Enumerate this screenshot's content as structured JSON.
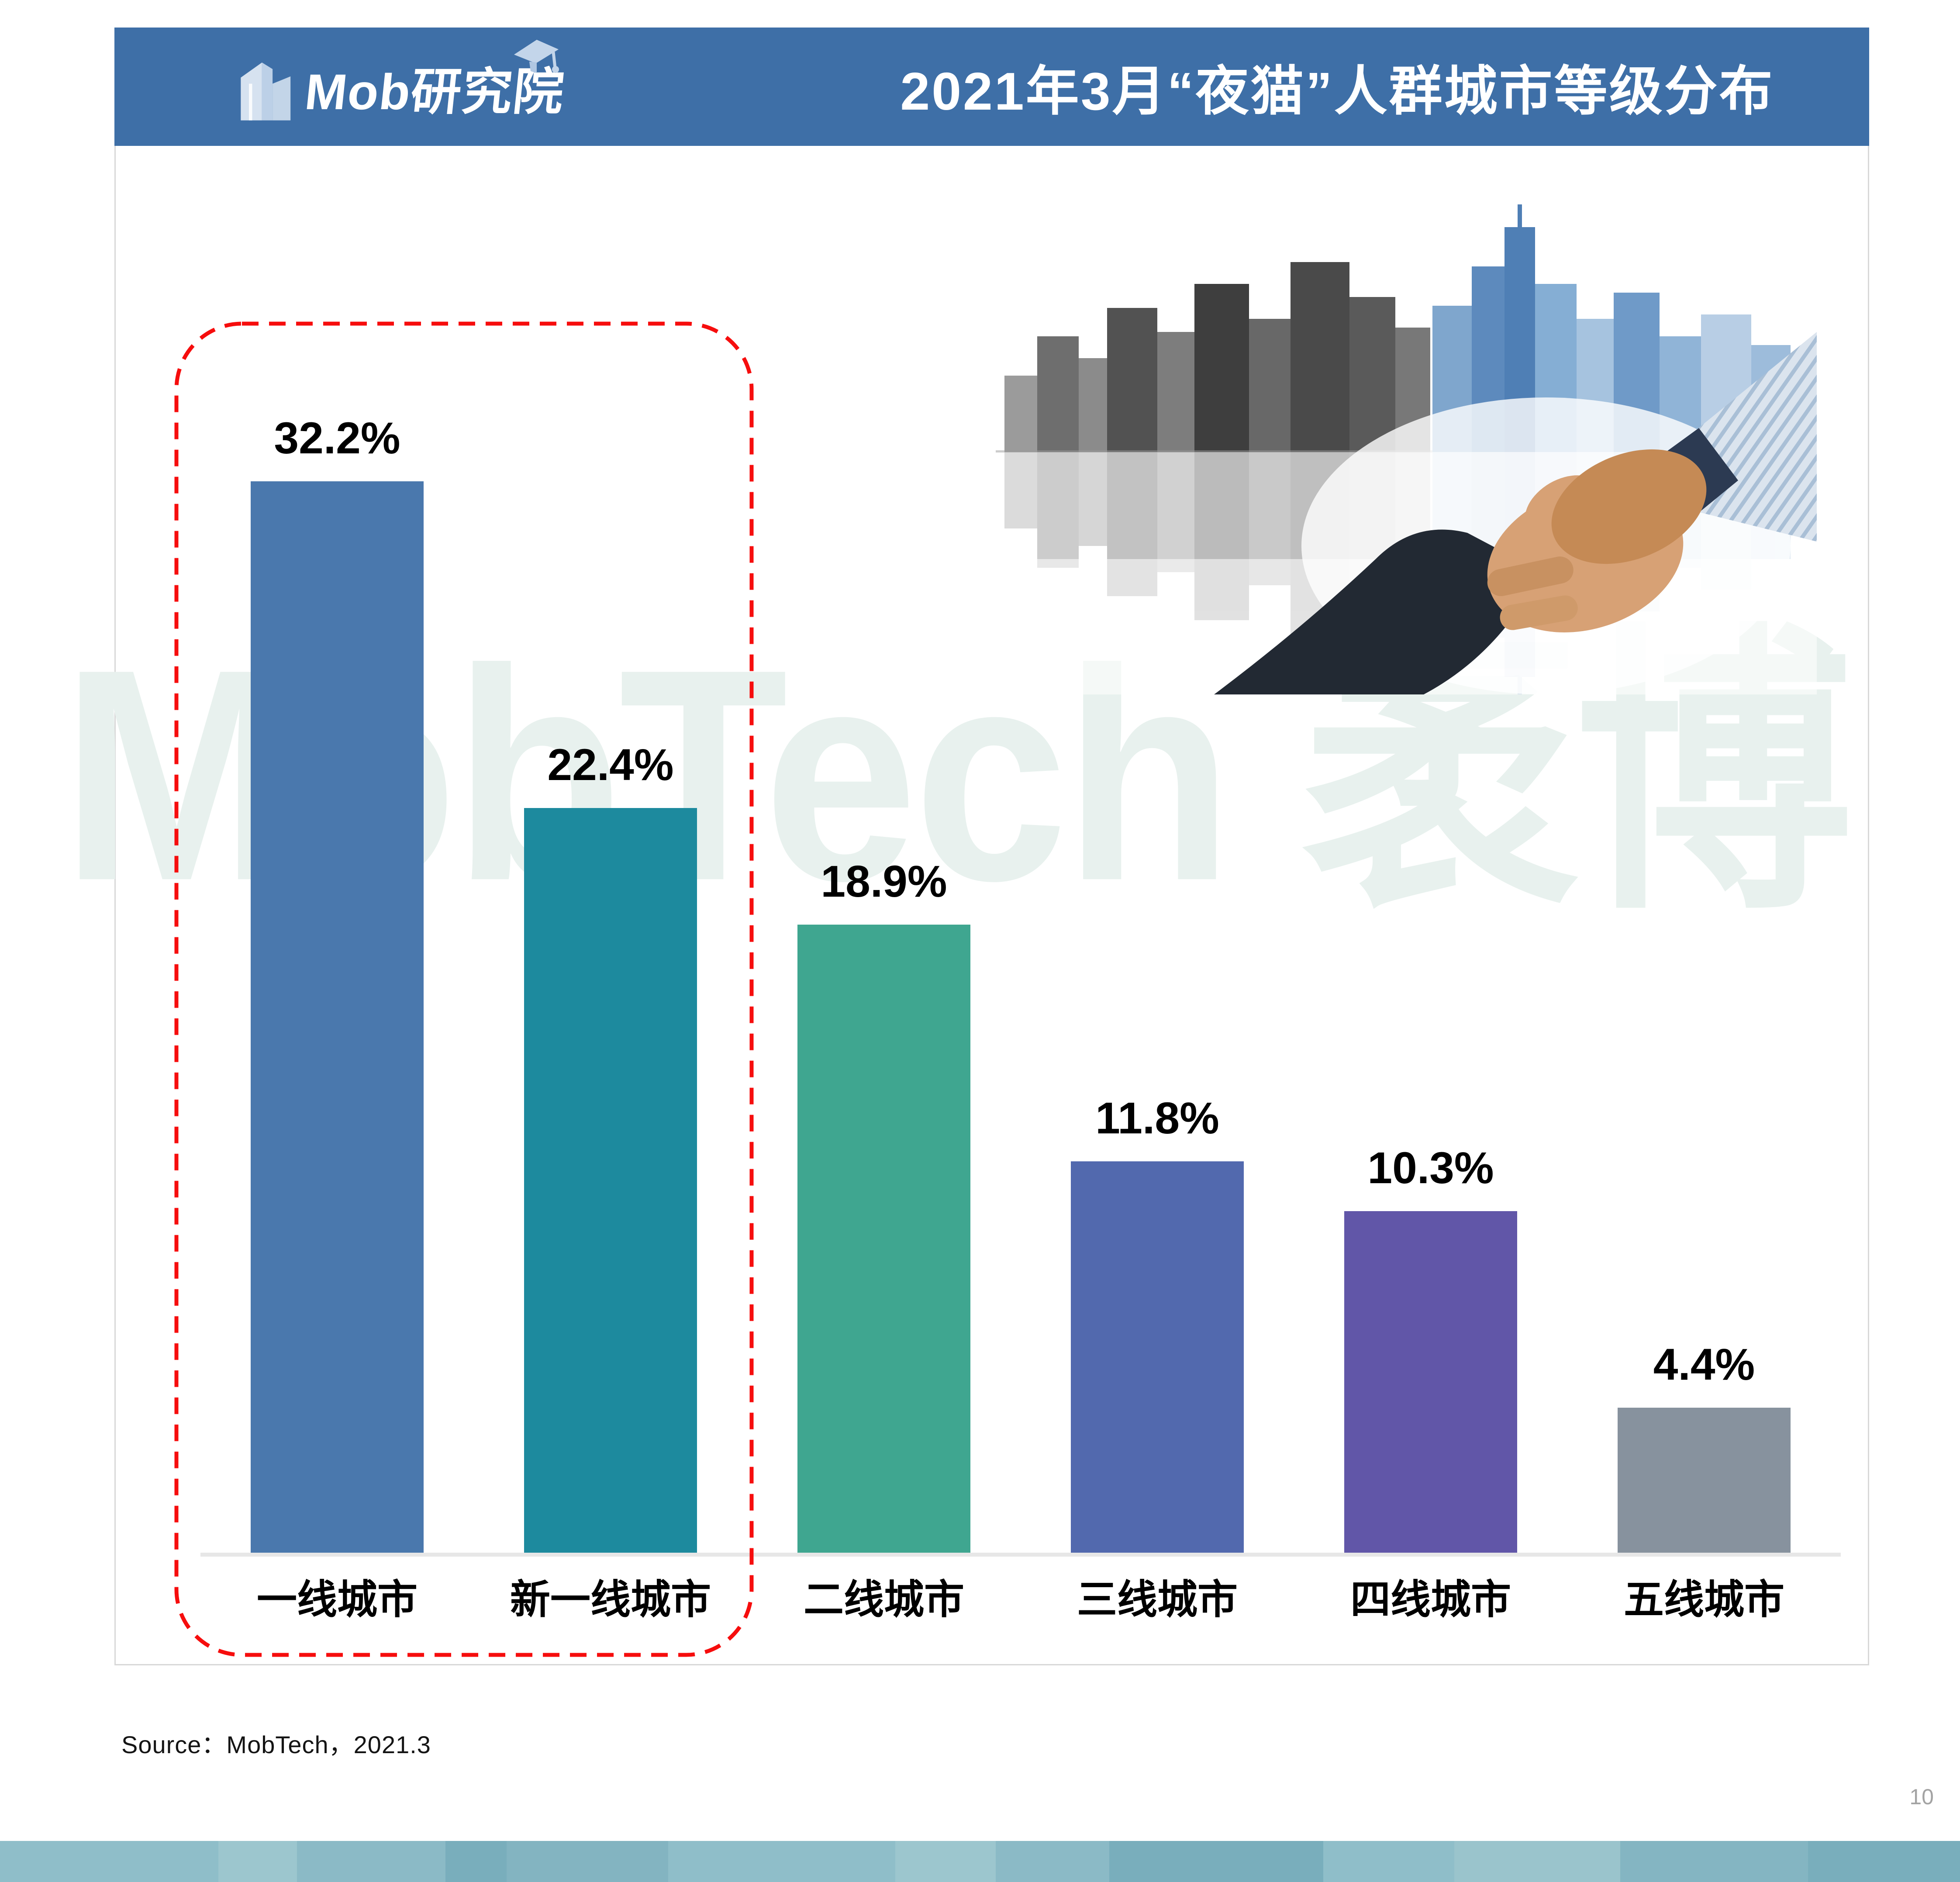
{
  "header": {
    "logo_text": "Mob研究院",
    "title": "2021年3月“夜猫”人群城市等级分布"
  },
  "watermark": {
    "text": "MobTech 袤博"
  },
  "chart_data": {
    "type": "bar",
    "title": "2021年3月“夜猫”人群城市等级分布",
    "categories": [
      "一线城市",
      "新一线城市",
      "二线城市",
      "三线城市",
      "四线城市",
      "五线城市"
    ],
    "values": [
      32.2,
      22.4,
      18.9,
      11.8,
      10.3,
      4.4
    ],
    "value_labels": [
      "32.2%",
      "22.4%",
      "18.9%",
      "11.8%",
      "10.3%",
      "4.4%"
    ],
    "bar_colors": [
      "#4a78ad",
      "#1d8a9e",
      "#3fa690",
      "#5269ae",
      "#6156a8",
      "#87929e"
    ],
    "xlabel": "",
    "ylabel": "",
    "ylim": [
      0,
      35
    ],
    "grid": false,
    "legend_position": "none",
    "annotation": {
      "highlighted_categories": [
        "一线城市",
        "新一线城市"
      ],
      "style": "red dashed rounded rectangle"
    }
  },
  "footer": {
    "source": "Source：MobTech，2021.3",
    "page_number": "10"
  },
  "colors": {
    "header_blue": "#3e6fa7",
    "highlight_red": "#f60d0d",
    "axis_gray": "#e7e7e7",
    "band_teal": "#8bbac6",
    "watermark_mint": "#e8f1ee"
  }
}
